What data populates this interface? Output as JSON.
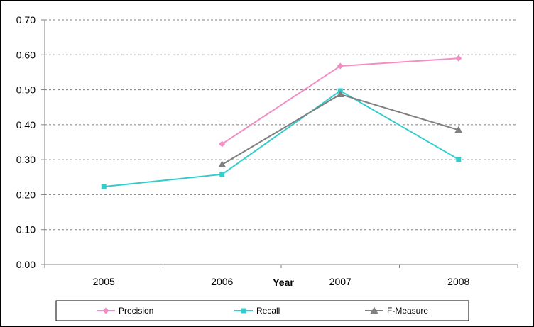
{
  "chart_data": {
    "type": "line",
    "title": "",
    "xlabel": "Year",
    "ylabel": "",
    "categories": [
      "2005",
      "2006",
      "2007",
      "2008"
    ],
    "ylim": [
      0,
      0.7
    ],
    "yticks": [
      "0.00",
      "0.10",
      "0.20",
      "0.30",
      "0.40",
      "0.50",
      "0.60",
      "0.70"
    ],
    "grid": "horizontal dashed",
    "legend_position": "bottom",
    "series": [
      {
        "name": "Precision",
        "values": [
          null,
          0.345,
          0.568,
          0.59
        ],
        "color": "#F28EC4",
        "marker": "diamond"
      },
      {
        "name": "Recall",
        "values": [
          0.223,
          0.258,
          0.497,
          0.301
        ],
        "color": "#33CCCC",
        "marker": "square"
      },
      {
        "name": "F-Measure",
        "values": [
          null,
          0.286,
          0.487,
          0.385
        ],
        "color": "#808080",
        "marker": "triangle"
      }
    ]
  }
}
